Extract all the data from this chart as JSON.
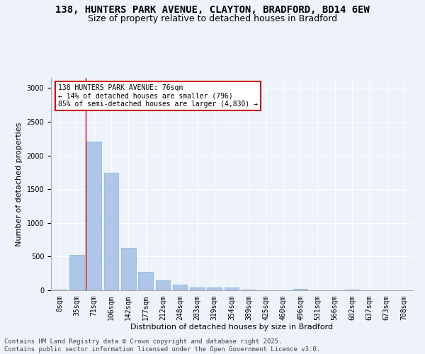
{
  "title_line1": "138, HUNTERS PARK AVENUE, CLAYTON, BRADFORD, BD14 6EW",
  "title_line2": "Size of property relative to detached houses in Bradford",
  "xlabel": "Distribution of detached houses by size in Bradford",
  "ylabel": "Number of detached properties",
  "bar_color": "#aec6e8",
  "bar_edge_color": "#7fb3d8",
  "vline_color": "#cc0000",
  "categories": [
    "0sqm",
    "35sqm",
    "71sqm",
    "106sqm",
    "142sqm",
    "177sqm",
    "212sqm",
    "248sqm",
    "283sqm",
    "319sqm",
    "354sqm",
    "389sqm",
    "425sqm",
    "460sqm",
    "496sqm",
    "531sqm",
    "566sqm",
    "602sqm",
    "637sqm",
    "673sqm",
    "708sqm"
  ],
  "values": [
    15,
    520,
    2210,
    1745,
    635,
    270,
    150,
    80,
    45,
    40,
    40,
    15,
    0,
    0,
    20,
    0,
    0,
    10,
    0,
    0,
    0
  ],
  "vline_pos": 1.5,
  "ylim": [
    0,
    3150
  ],
  "yticks": [
    0,
    500,
    1000,
    1500,
    2000,
    2500,
    3000
  ],
  "annotation_title": "138 HUNTERS PARK AVENUE: 76sqm",
  "annotation_line1": "← 14% of detached houses are smaller (796)",
  "annotation_line2": "85% of semi-detached houses are larger (4,830) →",
  "annotation_box_color": "#ffffff",
  "annotation_box_edge": "#cc0000",
  "footer_line1": "Contains HM Land Registry data © Crown copyright and database right 2025.",
  "footer_line2": "Contains public sector information licensed under the Open Government Licence v3.0.",
  "bg_color": "#eef2fa",
  "plot_bg_color": "#eef2fa",
  "title_fontsize": 10,
  "subtitle_fontsize": 9,
  "axis_label_fontsize": 8,
  "tick_fontsize": 7,
  "footer_fontsize": 6.5
}
